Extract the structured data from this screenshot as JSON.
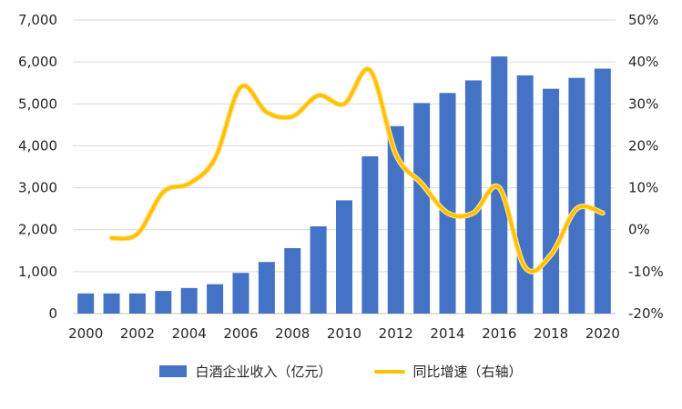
{
  "chart_data": {
    "type": "bar",
    "title": "",
    "categories": [
      "2000",
      "2001",
      "2002",
      "2003",
      "2004",
      "2005",
      "2006",
      "2007",
      "2008",
      "2009",
      "2010",
      "2011",
      "2012",
      "2013",
      "2014",
      "2015",
      "2016",
      "2017",
      "2018",
      "2019",
      "2020"
    ],
    "x_tick_labels_shown": [
      "2000",
      "2002",
      "2004",
      "2006",
      "2008",
      "2010",
      "2012",
      "2014",
      "2016",
      "2018",
      "2020"
    ],
    "series": [
      {
        "name": "白酒企业收入（亿元）",
        "type": "bar",
        "axis": "left",
        "values": [
          480,
          480,
          480,
          540,
          610,
          700,
          970,
          1230,
          1560,
          2080,
          2700,
          3750,
          4470,
          5020,
          5260,
          5560,
          6130,
          5680,
          5360,
          5620,
          5840
        ]
      },
      {
        "name": "同比增速（右轴）",
        "type": "line",
        "axis": "right",
        "values": [
          null,
          -2,
          -1,
          9,
          11,
          17,
          34,
          28,
          27,
          32,
          30,
          38,
          18,
          11,
          4,
          4,
          10,
          -9,
          -6,
          5,
          4
        ]
      }
    ],
    "left_axis": {
      "min": 0,
      "max": 7000,
      "ticks": [
        {
          "value": 0,
          "label": "0"
        },
        {
          "value": 1000,
          "label": "1,000"
        },
        {
          "value": 2000,
          "label": "2,000"
        },
        {
          "value": 3000,
          "label": "3,000"
        },
        {
          "value": 4000,
          "label": "4,000"
        },
        {
          "value": 5000,
          "label": "5,000"
        },
        {
          "value": 6000,
          "label": "6,000"
        },
        {
          "value": 7000,
          "label": "7,000"
        }
      ]
    },
    "right_axis": {
      "min": -20,
      "max": 50,
      "ticks": [
        {
          "value": -20,
          "label": "-20%"
        },
        {
          "value": -10,
          "label": "-10%"
        },
        {
          "value": 0,
          "label": "0%"
        },
        {
          "value": 10,
          "label": "10%"
        },
        {
          "value": 20,
          "label": "20%"
        },
        {
          "value": 30,
          "label": "30%"
        },
        {
          "value": 40,
          "label": "40%"
        },
        {
          "value": 50,
          "label": "50%"
        }
      ]
    },
    "colors": {
      "bar": "#4472C4",
      "line": "#FFC000",
      "grid": "#D9D9D9",
      "baseline": "#BFBFBF",
      "text": "#262626"
    },
    "grid": true,
    "legend_position": "bottom"
  }
}
